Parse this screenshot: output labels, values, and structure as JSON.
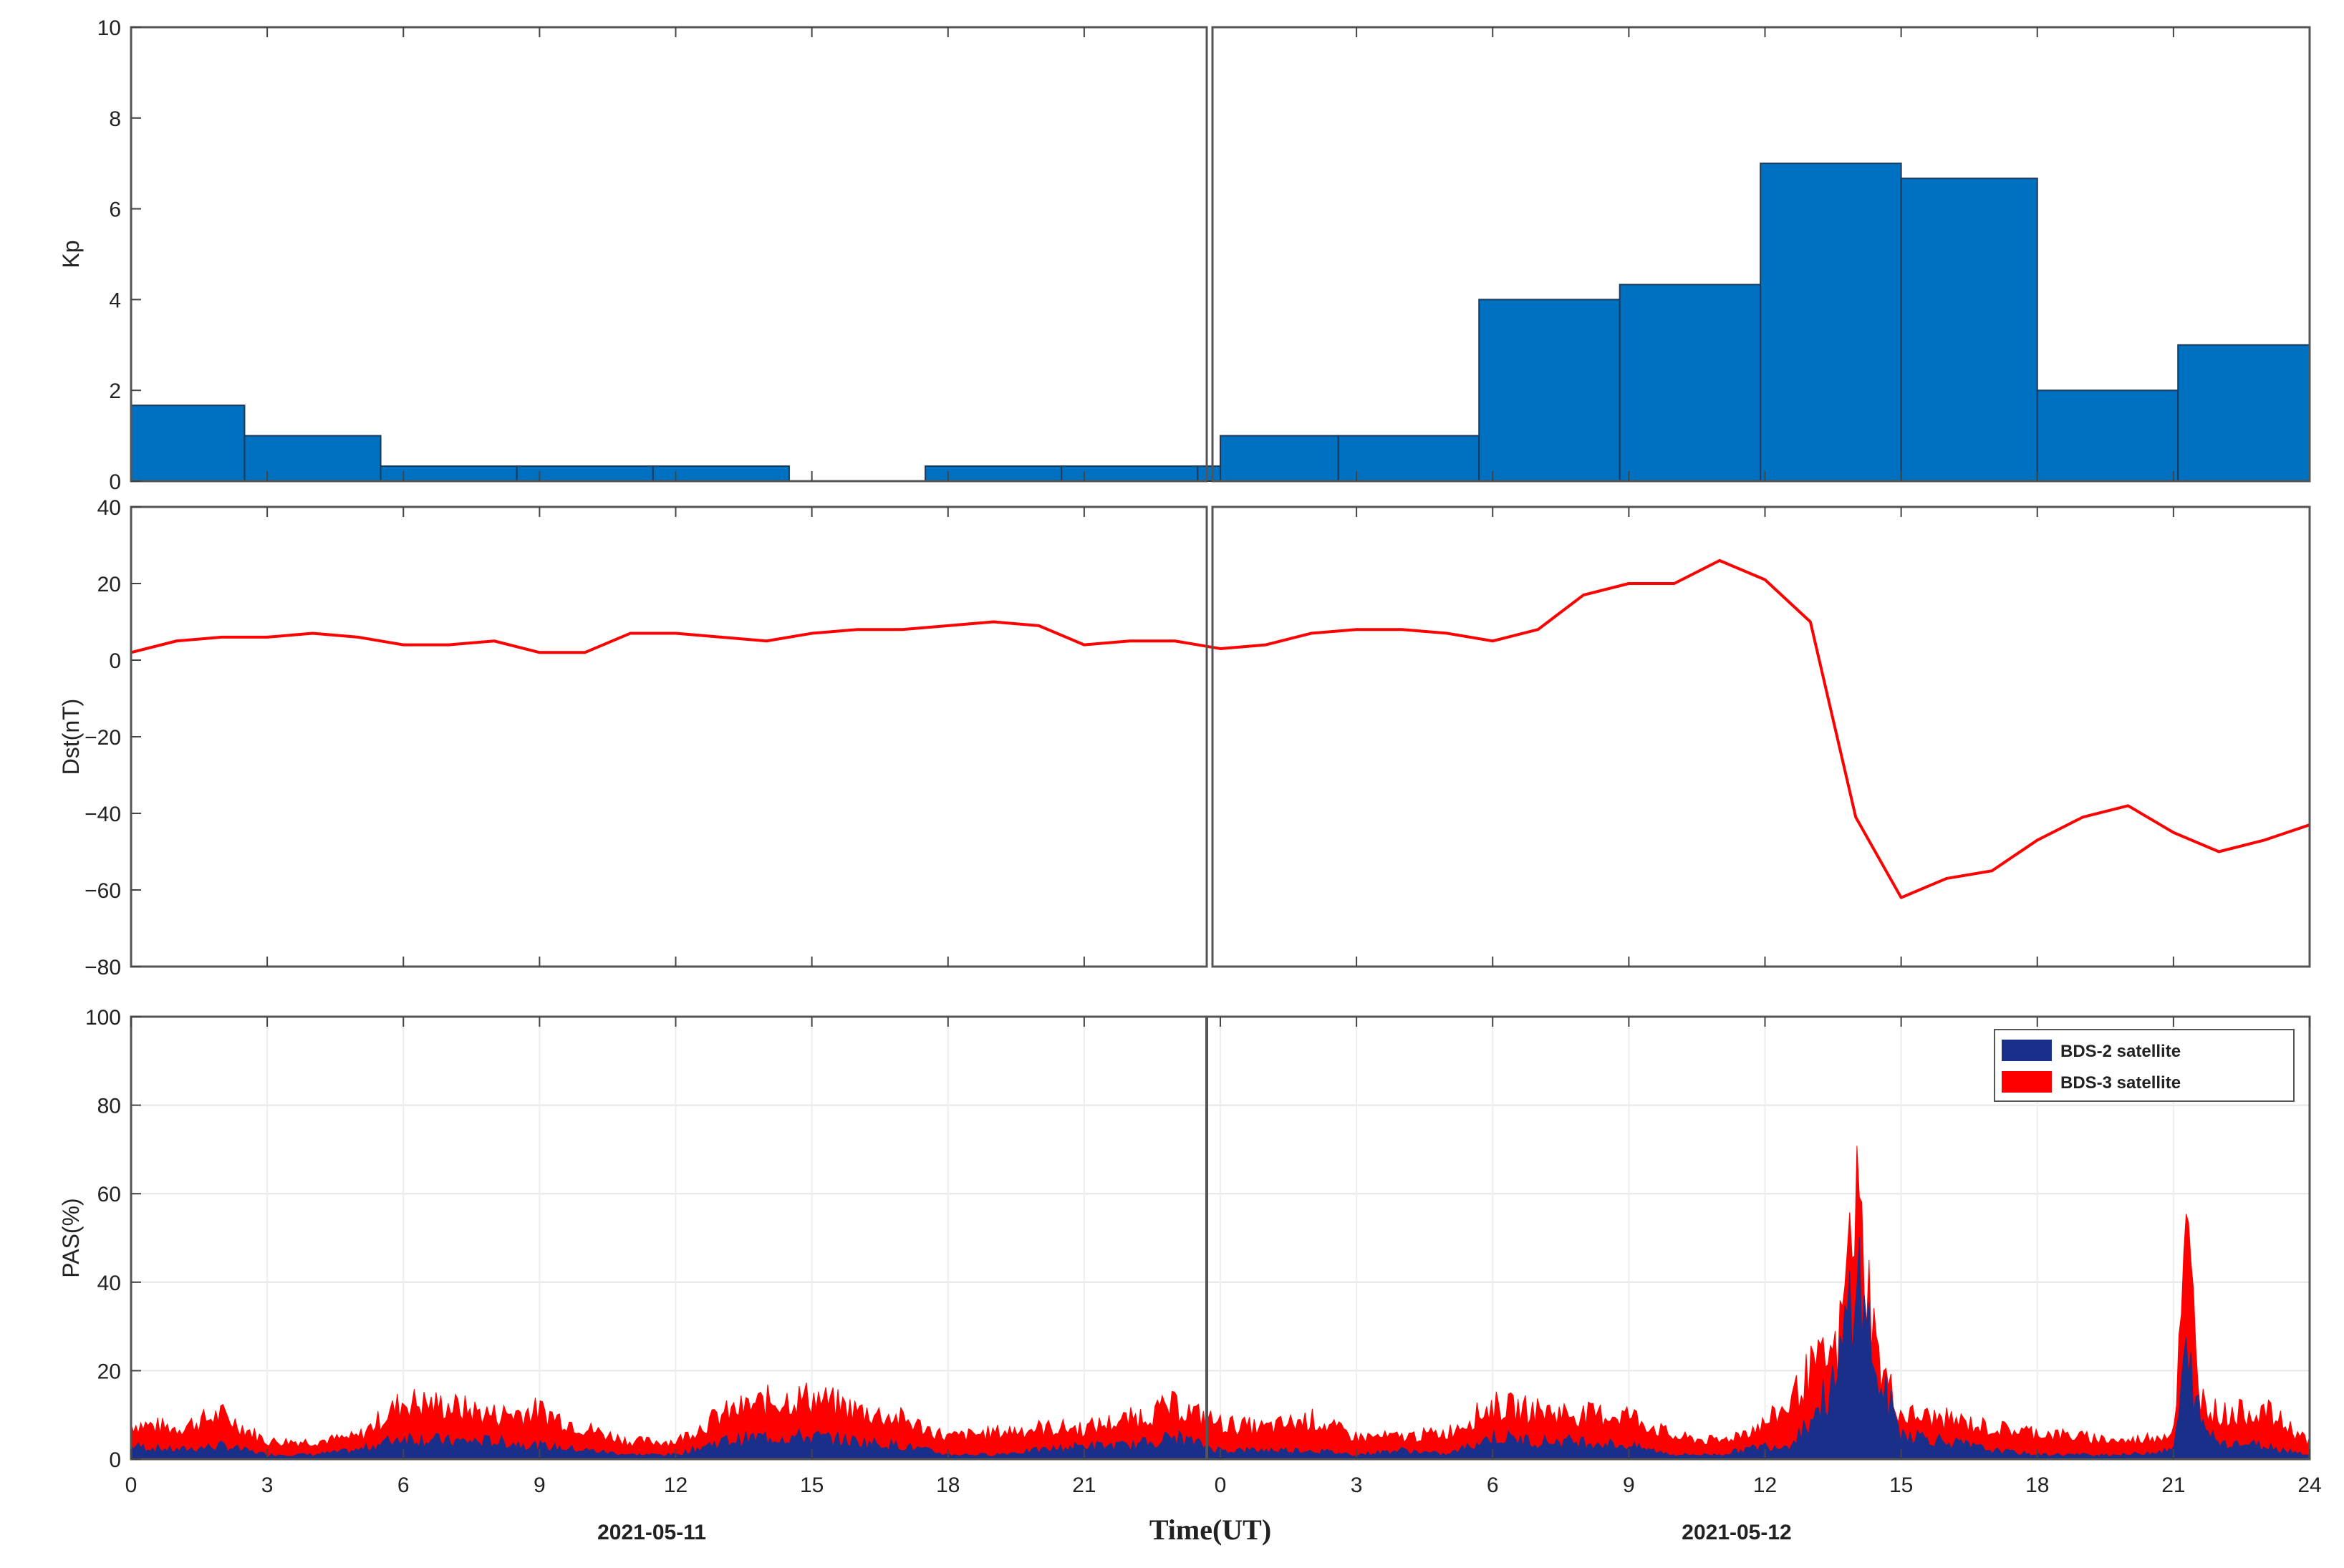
{
  "chart_data": [
    {
      "id": "kp",
      "type": "bar",
      "ylabel": "Kp",
      "ylim": [
        0,
        10
      ],
      "yticks": [
        0,
        2,
        4,
        6,
        8,
        10
      ],
      "xlim": [
        0,
        48
      ],
      "grid": false,
      "color": "#0070c0",
      "bars": [
        {
          "x0": 0,
          "x1": 2.5,
          "value": 1.67
        },
        {
          "x0": 2.5,
          "x1": 5.5,
          "value": 1.0
        },
        {
          "x0": 5.5,
          "x1": 8.5,
          "value": 0.33
        },
        {
          "x0": 8.5,
          "x1": 11.5,
          "value": 0.33
        },
        {
          "x0": 11.5,
          "x1": 14.5,
          "value": 0.33
        },
        {
          "x0": 14.5,
          "x1": 17.5,
          "value": 0.0
        },
        {
          "x0": 17.5,
          "x1": 20.5,
          "value": 0.33
        },
        {
          "x0": 20.5,
          "x1": 23.5,
          "value": 0.33
        },
        {
          "x0": 23.5,
          "x1": 24,
          "value": 0.33
        },
        {
          "x0": 24,
          "x1": 26.6,
          "value": 1.0
        },
        {
          "x0": 26.6,
          "x1": 29.7,
          "value": 1.0
        },
        {
          "x0": 29.7,
          "x1": 32.8,
          "value": 4.0
        },
        {
          "x0": 32.8,
          "x1": 35.9,
          "value": 4.33
        },
        {
          "x0": 35.9,
          "x1": 39.0,
          "value": 7.0
        },
        {
          "x0": 39.0,
          "x1": 42.0,
          "value": 6.67
        },
        {
          "x0": 42.0,
          "x1": 45.1,
          "value": 2.0
        },
        {
          "x0": 45.1,
          "x1": 48,
          "value": 3.0
        }
      ]
    },
    {
      "id": "dst",
      "type": "line",
      "ylabel": "Dst(nT)",
      "ylim": [
        -80,
        40
      ],
      "yticks": [
        -80,
        -60,
        -40,
        -20,
        0,
        20,
        40
      ],
      "xlim": [
        0,
        48
      ],
      "grid": false,
      "color": "#ff0000",
      "series": [
        {
          "x": [
            0,
            1,
            2,
            3,
            4,
            5,
            6,
            7,
            8,
            9,
            10,
            11,
            12,
            13,
            14,
            15,
            16,
            17,
            18,
            19,
            20,
            21,
            22,
            23,
            24,
            25,
            26,
            27,
            28,
            29,
            30,
            31,
            32,
            33,
            34,
            35,
            36,
            37,
            38,
            39,
            40,
            41,
            42,
            43,
            44,
            45,
            46,
            47,
            48
          ],
          "values": [
            2,
            5,
            6,
            6,
            7,
            6,
            4,
            4,
            5,
            2,
            2,
            7,
            7,
            6,
            5,
            7,
            8,
            8,
            9,
            10,
            9,
            4,
            5,
            5,
            3,
            4,
            7,
            8,
            8,
            7,
            5,
            8,
            17,
            20,
            20,
            26,
            21,
            10,
            -41,
            -62,
            -57,
            -55,
            -47,
            -41,
            -38,
            -45,
            -50,
            -47,
            -43
          ]
        }
      ]
    },
    {
      "id": "pas",
      "type": "area",
      "ylabel": "PAS(%)",
      "ylim": [
        0,
        100
      ],
      "yticks": [
        0,
        20,
        40,
        60,
        80,
        100
      ],
      "xlim": [
        0,
        48
      ],
      "xticks": [
        0,
        3,
        6,
        9,
        12,
        15,
        18,
        21,
        24,
        27,
        30,
        33,
        36,
        39,
        42,
        45,
        48
      ],
      "xtick_labels": [
        "0",
        "3",
        "6",
        "9",
        "12",
        "15",
        "18",
        "21",
        "0",
        "3",
        "6",
        "9",
        "12",
        "15",
        "18",
        "21",
        "24"
      ],
      "grid": true,
      "legend": "top-right",
      "series": [
        {
          "name": "BDS-2 satellite",
          "color": "#1a2f8a",
          "x": [
            0,
            1,
            2,
            3,
            4,
            5,
            6,
            7,
            8,
            9,
            10,
            11,
            12,
            13,
            14,
            15,
            16,
            17,
            18,
            19,
            20,
            21,
            22,
            23,
            24,
            25,
            26,
            27,
            28,
            29,
            30,
            31,
            32,
            33,
            34,
            35,
            36,
            36.5,
            37,
            37.6,
            38,
            38.5,
            39,
            40,
            41,
            42,
            43,
            44,
            45,
            45.3,
            45.6,
            46,
            47,
            48
          ],
          "values": [
            3,
            2,
            3,
            1,
            1,
            2,
            5,
            4,
            4,
            3,
            2,
            1,
            1,
            4,
            5,
            5,
            4,
            3,
            1,
            1,
            2,
            3,
            3,
            5,
            2,
            2,
            2,
            1,
            2,
            1,
            5,
            4,
            4,
            3,
            1,
            1,
            3,
            3,
            9,
            18,
            45,
            18,
            6,
            4,
            2,
            1,
            1,
            1,
            2,
            24,
            8,
            4,
            3,
            1
          ]
        },
        {
          "name": "BDS-3 satellite",
          "color": "#ff0000",
          "x": [
            0,
            1,
            2,
            3,
            4,
            5,
            6,
            7,
            8,
            9,
            10,
            11,
            12,
            13,
            14,
            15,
            16,
            17,
            18,
            19,
            20,
            21,
            22,
            23,
            24,
            25,
            26,
            27,
            28,
            29,
            30,
            31,
            32,
            33,
            34,
            35,
            36,
            36.5,
            37,
            37.6,
            38,
            38.5,
            39,
            40,
            41,
            42,
            43,
            44,
            45,
            45.3,
            45.6,
            46,
            47,
            48
          ],
          "values": [
            8,
            7,
            10,
            4,
            4,
            5,
            13,
            12,
            10,
            11,
            7,
            4,
            4,
            10,
            13,
            14,
            11,
            9,
            5,
            6,
            7,
            7,
            9,
            12,
            8,
            7,
            9,
            5,
            5,
            6,
            12,
            11,
            10,
            10,
            5,
            4,
            8,
            12,
            20,
            24,
            60,
            22,
            10,
            9,
            7,
            6,
            5,
            4,
            6,
            50,
            14,
            10,
            11,
            4
          ]
        }
      ]
    }
  ],
  "bottom": {
    "date_left": "2021-05-11",
    "date_right": "2021-05-12",
    "xlabel": "Time(UT)"
  }
}
